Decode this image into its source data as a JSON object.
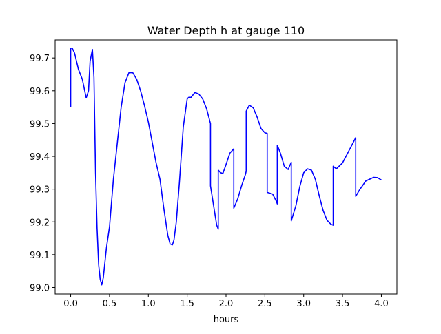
{
  "chart_data": {
    "type": "line",
    "title": "Water Depth h at gauge 110",
    "xlabel": "hours",
    "ylabel": "",
    "xlim": [
      -0.2,
      4.2
    ],
    "ylim": [
      98.98,
      99.755
    ],
    "x_ticks": [
      0.0,
      0.5,
      1.0,
      1.5,
      2.0,
      2.5,
      3.0,
      3.5,
      4.0
    ],
    "x_tick_labels": [
      "0.0",
      "0.5",
      "1.0",
      "1.5",
      "2.0",
      "2.5",
      "3.0",
      "3.5",
      "4.0"
    ],
    "y_ticks": [
      99.0,
      99.1,
      99.2,
      99.3,
      99.4,
      99.5,
      99.6,
      99.7
    ],
    "y_tick_labels": [
      "99.0",
      "99.1",
      "99.2",
      "99.3",
      "99.4",
      "99.5",
      "99.6",
      "99.7"
    ],
    "grid": false,
    "series": [
      {
        "color": "#0000ff",
        "x": [
          0.0,
          0.0,
          0.02,
          0.05,
          0.1,
          0.15,
          0.2,
          0.23,
          0.25,
          0.28,
          0.3,
          0.32,
          0.34,
          0.36,
          0.38,
          0.4,
          0.42,
          0.44,
          0.46,
          0.5,
          0.55,
          0.6,
          0.65,
          0.7,
          0.75,
          0.8,
          0.85,
          0.9,
          0.95,
          1.0,
          1.1,
          1.15,
          1.2,
          1.25,
          1.28,
          1.31,
          1.33,
          1.36,
          1.4,
          1.45,
          1.5,
          1.52,
          1.55,
          1.6,
          1.65,
          1.7,
          1.75,
          1.8,
          1.8,
          1.84,
          1.88,
          1.9,
          1.9,
          1.93,
          1.96,
          2.0,
          2.05,
          2.1,
          2.1,
          2.15,
          2.2,
          2.25,
          2.26,
          2.26,
          2.3,
          2.35,
          2.4,
          2.45,
          2.5,
          2.53,
          2.53,
          2.6,
          2.65,
          2.66,
          2.66,
          2.7,
          2.75,
          2.8,
          2.84,
          2.84,
          2.9,
          2.95,
          3.0,
          3.05,
          3.1,
          3.15,
          3.2,
          3.25,
          3.3,
          3.35,
          3.38,
          3.38,
          3.42,
          3.5,
          3.6,
          3.67,
          3.67,
          3.72,
          3.8,
          3.9,
          3.95,
          4.0
        ],
        "y": [
          99.55,
          99.73,
          99.73,
          99.715,
          99.665,
          99.635,
          99.578,
          99.6,
          99.69,
          99.726,
          99.64,
          99.35,
          99.18,
          99.07,
          99.025,
          99.008,
          99.03,
          99.075,
          99.12,
          99.185,
          99.33,
          99.44,
          99.55,
          99.625,
          99.655,
          99.655,
          99.635,
          99.6,
          99.555,
          99.505,
          99.38,
          99.33,
          99.24,
          99.16,
          99.133,
          99.13,
          99.145,
          99.2,
          99.32,
          99.49,
          99.575,
          99.58,
          99.58,
          99.595,
          99.59,
          99.575,
          99.545,
          99.5,
          99.31,
          99.25,
          99.19,
          99.178,
          99.358,
          99.35,
          99.348,
          99.375,
          99.41,
          99.423,
          99.242,
          99.27,
          99.31,
          99.345,
          99.355,
          99.538,
          99.556,
          99.548,
          99.52,
          99.485,
          99.472,
          99.47,
          99.29,
          99.285,
          99.262,
          99.255,
          99.434,
          99.41,
          99.37,
          99.36,
          99.382,
          99.203,
          99.25,
          99.308,
          99.35,
          99.362,
          99.358,
          99.33,
          99.28,
          99.235,
          99.205,
          99.193,
          99.19,
          99.37,
          99.362,
          99.38,
          99.425,
          99.457,
          99.278,
          99.298,
          99.325,
          99.336,
          99.335,
          99.328
        ]
      }
    ]
  }
}
